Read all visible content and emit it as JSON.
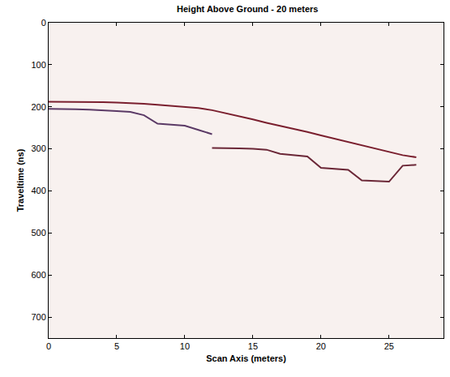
{
  "chart_data": {
    "type": "line",
    "title": "Height Above Ground - 20 meters",
    "x_label": "Scan Axis (meters)",
    "y_label": "Traveltime (ns)",
    "x": [
      0,
      1,
      2,
      3,
      4,
      5,
      6,
      7,
      8,
      9,
      10,
      11,
      12,
      13,
      14,
      15,
      16,
      17,
      18,
      19,
      20,
      21,
      22,
      23,
      24,
      25,
      26,
      27,
      28
    ],
    "series": [
      {
        "color": "#7a1f2e",
        "values": [
          188,
          188,
          188,
          188,
          189,
          190,
          191,
          193,
          195,
          198,
          200,
          203,
          208,
          215,
          222,
          230,
          238,
          245,
          252,
          260,
          268,
          276,
          284,
          292,
          300,
          308,
          315,
          320,
          null
        ]
      },
      {
        "color": "#6b2737",
        "values": [
          null,
          null,
          null,
          null,
          null,
          null,
          null,
          null,
          null,
          null,
          null,
          null,
          298,
          298,
          299,
          300,
          302,
          312,
          315,
          318,
          345,
          347,
          350,
          375,
          376,
          378,
          340,
          338,
          null
        ]
      },
      {
        "color": "#5b3a66",
        "values": [
          205,
          205,
          206,
          207,
          208,
          210,
          212,
          220,
          240,
          242,
          245,
          255,
          265,
          null,
          null,
          null,
          null,
          null,
          null,
          null,
          null,
          null,
          null,
          null,
          null,
          null,
          null,
          null,
          null
        ]
      }
    ],
    "xlim": [
      0,
      29
    ],
    "xticks": [
      0,
      5,
      10,
      15,
      20,
      25
    ],
    "ylim": [
      750,
      0
    ],
    "yticks": [
      0,
      100,
      200,
      300,
      400,
      500,
      600,
      700
    ],
    "grid": false
  }
}
